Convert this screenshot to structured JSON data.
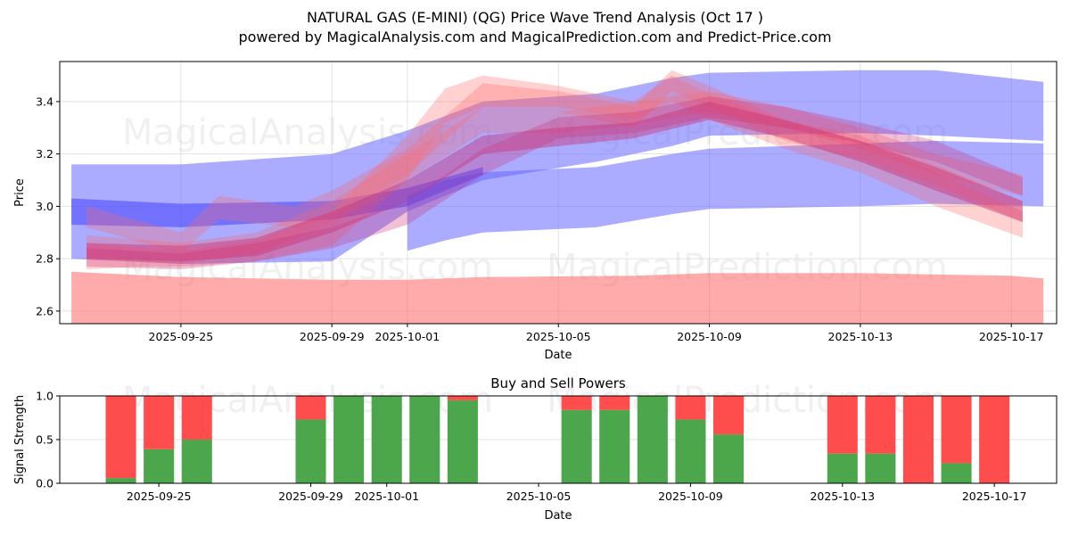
{
  "chart_data": [
    {
      "type": "area",
      "title": "NATURAL GAS (E-MINI) (QG) Price Wave Trend Analysis (Oct 17 )",
      "subtitle": "powered by MagicalAnalysis.com and MagicalPrediction.com and Predict-Price.com",
      "xlabel": "Date",
      "ylabel": "Price",
      "ylim": [
        2.552,
        3.553
      ],
      "xlim_days_from": "2025-09-25",
      "xlim": [
        -3.21,
        23.2
      ],
      "grid": true,
      "x_ticks": [
        {
          "day": 0,
          "label": "2025-09-25"
        },
        {
          "day": 4,
          "label": "2025-09-29"
        },
        {
          "day": 6,
          "label": "2025-10-01"
        },
        {
          "day": 10,
          "label": "2025-10-05"
        },
        {
          "day": 14,
          "label": "2025-10-09"
        },
        {
          "day": 18,
          "label": "2025-10-13"
        },
        {
          "day": 22,
          "label": "2025-10-17"
        }
      ],
      "y_ticks": [
        {
          "value": 2.6,
          "label": "2.6"
        },
        {
          "value": 2.8,
          "label": "2.8"
        },
        {
          "value": 3.0,
          "label": "3.0"
        },
        {
          "value": 3.2,
          "label": "3.2"
        },
        {
          "value": 3.4,
          "label": "3.4"
        }
      ],
      "watermarks": [
        "MagicalAnalysis.com",
        "MagicalPrediction.com"
      ],
      "bands": [
        {
          "name": "support-band",
          "color": "#ff6666",
          "opacity": 0.55,
          "days": [
            -2.9,
            0,
            4,
            6,
            8,
            12,
            14,
            18,
            22,
            22.85
          ],
          "upper": [
            2.75,
            2.73,
            2.72,
            2.72,
            2.73,
            2.735,
            2.745,
            2.745,
            2.735,
            2.725
          ],
          "lower": [
            2.54,
            2.54,
            2.54,
            2.54,
            2.54,
            2.54,
            2.54,
            2.54,
            2.54,
            2.54
          ]
        },
        {
          "name": "blue-upper-band",
          "color": "#6666ff",
          "opacity": 0.55,
          "days": [
            -2.9,
            0,
            4,
            6,
            8,
            11,
            13,
            14,
            18,
            20,
            22.85
          ],
          "upper": [
            3.16,
            3.16,
            3.2,
            3.29,
            3.4,
            3.43,
            3.49,
            3.51,
            3.52,
            3.52,
            3.475
          ],
          "lower": [
            2.8,
            2.78,
            2.79,
            2.98,
            3.1,
            3.17,
            3.23,
            3.27,
            3.28,
            3.27,
            3.25
          ]
        },
        {
          "name": "blue-lower-band",
          "color": "#6666ff",
          "opacity": 0.55,
          "days": [
            6,
            7,
            8,
            11,
            13,
            14,
            18,
            20,
            22.85
          ],
          "upper": [
            3.04,
            3.1,
            3.13,
            3.15,
            3.2,
            3.22,
            3.24,
            3.25,
            3.24
          ],
          "lower": [
            2.83,
            2.87,
            2.9,
            2.92,
            2.97,
            2.99,
            3.0,
            3.01,
            3.0
          ]
        },
        {
          "name": "blue-trend-line",
          "color": "#4444ff",
          "opacity": 0.55,
          "days": [
            -2.9,
            0,
            4,
            6,
            8
          ],
          "upper": [
            3.03,
            3.01,
            3.02,
            3.07,
            3.15
          ],
          "lower": [
            2.93,
            2.92,
            2.95,
            3.0,
            3.12
          ]
        },
        {
          "name": "wave-1",
          "color": "#ff6666",
          "opacity": 0.3,
          "days": [
            -2.5,
            -1,
            0,
            2,
            4,
            6,
            7,
            8,
            10,
            12,
            13,
            14,
            16,
            18,
            20,
            22.3
          ],
          "upper": [
            2.86,
            2.84,
            2.83,
            2.87,
            2.98,
            3.27,
            3.45,
            3.5,
            3.46,
            3.4,
            3.5,
            3.43,
            3.32,
            3.25,
            3.13,
            2.98
          ],
          "lower": [
            2.76,
            2.77,
            2.77,
            2.79,
            2.85,
            3.1,
            3.32,
            3.38,
            3.38,
            3.33,
            3.4,
            3.33,
            3.22,
            3.13,
            3.0,
            2.88
          ]
        },
        {
          "name": "wave-2",
          "color": "#ff6666",
          "opacity": 0.3,
          "days": [
            -2.5,
            0,
            1,
            3,
            4,
            6,
            8,
            10,
            12,
            13,
            14,
            16,
            18,
            20,
            22.3
          ],
          "upper": [
            3.0,
            2.9,
            3.04,
            3.0,
            3.06,
            3.22,
            3.47,
            3.44,
            3.38,
            3.52,
            3.46,
            3.33,
            3.27,
            3.16,
            3.02
          ],
          "lower": [
            2.92,
            2.82,
            2.95,
            2.92,
            2.96,
            3.12,
            3.38,
            3.36,
            3.3,
            3.44,
            3.38,
            3.25,
            3.18,
            3.08,
            2.94
          ]
        },
        {
          "name": "wave-3",
          "color": "#ff6666",
          "opacity": 0.3,
          "days": [
            -2.5,
            0,
            2,
            4,
            6,
            8,
            10,
            12,
            14,
            16,
            18,
            20,
            22.3
          ],
          "upper": [
            2.89,
            2.86,
            2.9,
            3.02,
            3.2,
            3.38,
            3.36,
            3.4,
            3.44,
            3.38,
            3.3,
            3.2,
            3.12
          ],
          "lower": [
            2.8,
            2.78,
            2.82,
            2.93,
            3.1,
            3.28,
            3.28,
            3.31,
            3.36,
            3.3,
            3.22,
            3.12,
            3.04
          ]
        },
        {
          "name": "wave-4",
          "color": "#cc3377",
          "opacity": 0.45,
          "days": [
            -2.5,
            0,
            2,
            4,
            6,
            8,
            10,
            12,
            14,
            16,
            18,
            20,
            22.3
          ],
          "upper": [
            2.86,
            2.85,
            2.88,
            2.98,
            3.1,
            3.27,
            3.3,
            3.32,
            3.4,
            3.33,
            3.25,
            3.15,
            3.02
          ],
          "lower": [
            2.8,
            2.79,
            2.81,
            2.9,
            3.02,
            3.2,
            3.23,
            3.26,
            3.33,
            3.26,
            3.17,
            3.06,
            2.94
          ]
        },
        {
          "name": "wave-5",
          "color": "#cc3377",
          "opacity": 0.3,
          "days": [
            -2.5,
            0,
            2,
            4,
            6,
            8,
            10,
            12,
            14,
            16,
            18,
            20,
            22.3
          ],
          "upper": [
            2.84,
            2.82,
            2.86,
            2.92,
            3.02,
            3.22,
            3.34,
            3.36,
            3.42,
            3.38,
            3.32,
            3.25,
            3.11
          ],
          "lower": [
            2.77,
            2.76,
            2.79,
            2.84,
            2.93,
            3.12,
            3.26,
            3.28,
            3.34,
            3.3,
            3.24,
            3.17,
            3.04
          ]
        }
      ]
    },
    {
      "type": "bar",
      "title": "Buy and Sell Powers",
      "xlabel": "Date",
      "ylabel": "Signal Strength",
      "ylim": [
        0,
        1
      ],
      "xlim_days_from": "2025-09-25",
      "xlim": [
        -2.61,
        23.64
      ],
      "grid": true,
      "x_ticks": [
        {
          "day": 0,
          "label": "2025-09-25"
        },
        {
          "day": 4,
          "label": "2025-09-29"
        },
        {
          "day": 6,
          "label": "2025-10-01"
        },
        {
          "day": 10,
          "label": "2025-10-05"
        },
        {
          "day": 14,
          "label": "2025-10-09"
        },
        {
          "day": 18,
          "label": "2025-10-13"
        },
        {
          "day": 22,
          "label": "2025-10-17"
        }
      ],
      "y_ticks": [
        {
          "value": 0.0,
          "label": "0.0"
        },
        {
          "value": 0.5,
          "label": "0.5"
        },
        {
          "value": 1.0,
          "label": "1.0"
        }
      ],
      "buy_color": "#4ca64c",
      "sell_color": "#ff4d4d",
      "categories": [
        "2025-09-24",
        "2025-09-25",
        "2025-09-26",
        "2025-09-29",
        "2025-09-30",
        "2025-10-01",
        "2025-10-02",
        "2025-10-03",
        "2025-10-06",
        "2025-10-07",
        "2025-10-08",
        "2025-10-09",
        "2025-10-10",
        "2025-10-13",
        "2025-10-14",
        "2025-10-15",
        "2025-10-16",
        "2025-10-17"
      ],
      "days": [
        -1,
        0,
        1,
        4,
        5,
        6,
        7,
        8,
        11,
        12,
        13,
        14,
        15,
        18,
        19,
        20,
        21,
        22
      ],
      "series": [
        {
          "name": "Buy Power",
          "values": [
            0.06,
            0.39,
            0.5,
            0.73,
            1.0,
            1.0,
            1.0,
            0.95,
            0.84,
            0.84,
            1.0,
            0.73,
            0.56,
            0.34,
            0.34,
            0.0,
            0.23,
            0.0
          ]
        },
        {
          "name": "Sell Power",
          "values": [
            0.94,
            0.61,
            0.5,
            0.27,
            0.0,
            0.0,
            0.0,
            0.05,
            0.16,
            0.16,
            0.0,
            0.27,
            0.44,
            0.66,
            0.66,
            1.0,
            0.77,
            1.0
          ]
        }
      ]
    }
  ]
}
